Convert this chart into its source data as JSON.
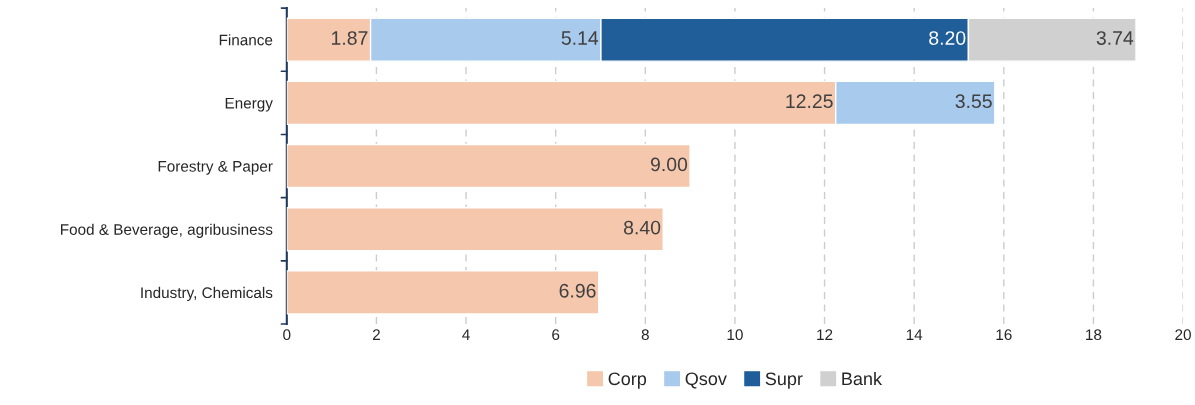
{
  "chart_data": {
    "type": "bar",
    "orientation": "horizontal",
    "stacked": true,
    "categories": [
      "Finance",
      "Energy",
      "Forestry & Paper",
      "Food & Beverage, agribusiness",
      "Industry, Chemicals"
    ],
    "series": [
      {
        "name": "Corp",
        "color": "#f5c7ad",
        "values": [
          1.87,
          12.25,
          9.0,
          8.4,
          6.96
        ],
        "value_labels": [
          "1.87",
          "12.25",
          "9.00",
          "8.40",
          "6.96"
        ]
      },
      {
        "name": "Qsov",
        "color": "#a8caec",
        "values": [
          5.14,
          3.55,
          null,
          null,
          null
        ],
        "value_labels": [
          "5.14",
          "3.55",
          null,
          null,
          null
        ]
      },
      {
        "name": "Supr",
        "color": "#1f5e98",
        "values": [
          8.2,
          null,
          null,
          null,
          null
        ],
        "value_labels": [
          "8.20",
          null,
          null,
          null,
          null
        ]
      },
      {
        "name": "Bank",
        "color": "#d0d0d0",
        "values": [
          3.74,
          null,
          null,
          null,
          null
        ],
        "value_labels": [
          "3.74",
          null,
          null,
          null,
          null
        ]
      }
    ],
    "xlim": [
      0,
      20
    ],
    "xticks": [
      0,
      2,
      4,
      6,
      8,
      10,
      12,
      14,
      16,
      18,
      20
    ],
    "grid": "x",
    "legend": "bottom"
  }
}
